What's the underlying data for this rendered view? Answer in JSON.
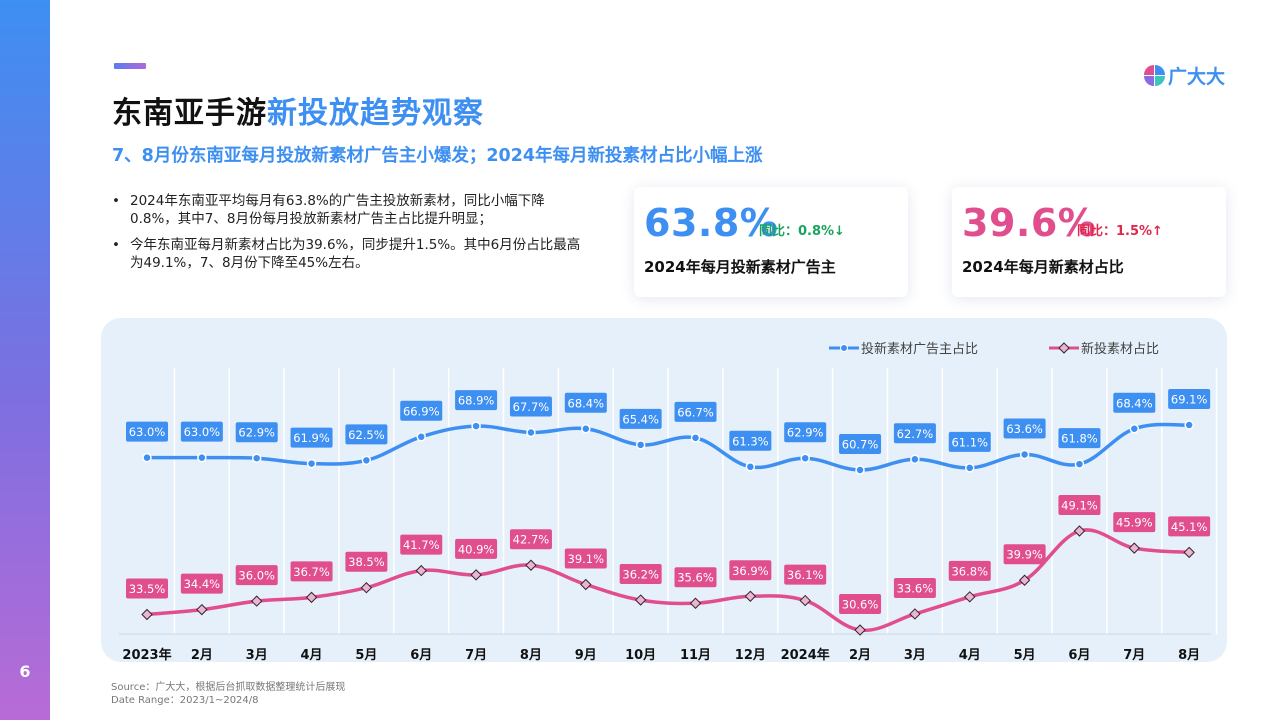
{
  "page": {
    "number": "6"
  },
  "header": {
    "title_prefix": "东南亚手游",
    "title_highlight": "新投放趋势观察",
    "subtitle": "7、8月份东南亚每月投放新素材广告主小爆发；2024年每月新投素材占比小幅上涨"
  },
  "logo": {
    "text": "广大大"
  },
  "bullets": [
    "2024年东南亚平均每月有63.8%的广告主投放新素材，同比小幅下降0.8%，其中7、8月份每月投放新素材广告主占比提升明显；",
    "今年东南亚每月新素材占比为39.6%，同步提升1.5%。其中6月份占比最高为49.1%，7、8月份下降至45%左右。"
  ],
  "kpis": [
    {
      "value": "63.8%",
      "change": "同比：0.8%↓",
      "label": "2024年每月投新素材广告主"
    },
    {
      "value": "39.6%",
      "change": "同比：1.5%↑",
      "label": "2024年每月新素材占比"
    }
  ],
  "colors": {
    "blue": "#3d8ff2",
    "pink": "#e04e8e",
    "panel": "#e6f0fa"
  },
  "chart_data": {
    "type": "line",
    "categories": [
      "2023年",
      "2月",
      "3月",
      "4月",
      "5月",
      "6月",
      "7月",
      "8月",
      "9月",
      "10月",
      "11月",
      "12月",
      "2024年",
      "2月",
      "3月",
      "4月",
      "5月",
      "6月",
      "7月",
      "8月"
    ],
    "series": [
      {
        "name": "投新素材广告主占比",
        "color": "#3d8ff2",
        "marker": "circle",
        "values": [
          63.0,
          63.0,
          62.9,
          61.9,
          62.5,
          66.9,
          68.9,
          67.7,
          68.4,
          65.4,
          66.7,
          61.3,
          62.9,
          60.7,
          62.7,
          61.1,
          63.6,
          61.8,
          68.4,
          69.1
        ],
        "labels": [
          "63.0%",
          "63.0%",
          "62.9%",
          "61.9%",
          "62.5%",
          "66.9%",
          "68.9%",
          "67.7%",
          "68.4%",
          "65.4%",
          "66.7%",
          "61.3%",
          "62.9%",
          "60.7%",
          "62.7%",
          "61.1%",
          "63.6%",
          "61.8%",
          "68.4%",
          "69.1%"
        ]
      },
      {
        "name": "新投素材占比",
        "color": "#e04e8e",
        "marker": "diamond",
        "values": [
          33.5,
          34.4,
          36.0,
          36.7,
          38.5,
          41.7,
          40.9,
          42.7,
          39.1,
          36.2,
          35.6,
          36.9,
          36.1,
          30.6,
          33.6,
          36.8,
          39.9,
          49.1,
          45.9,
          45.1
        ],
        "labels": [
          "33.5%",
          "34.4%",
          "36.0%",
          "36.7%",
          "38.5%",
          "41.7%",
          "40.9%",
          "42.7%",
          "39.1%",
          "36.2%",
          "35.6%",
          "36.9%",
          "36.1%",
          "30.6%",
          "33.6%",
          "36.8%",
          "39.9%",
          "49.1%",
          "45.9%",
          "45.1%"
        ]
      }
    ],
    "legend_position": "top-right",
    "grid": "vertical"
  },
  "source": {
    "line1": "Source：广大大，根据后台抓取数据整理统计后展现",
    "line2": "Date Range：2023/1~2024/8"
  }
}
